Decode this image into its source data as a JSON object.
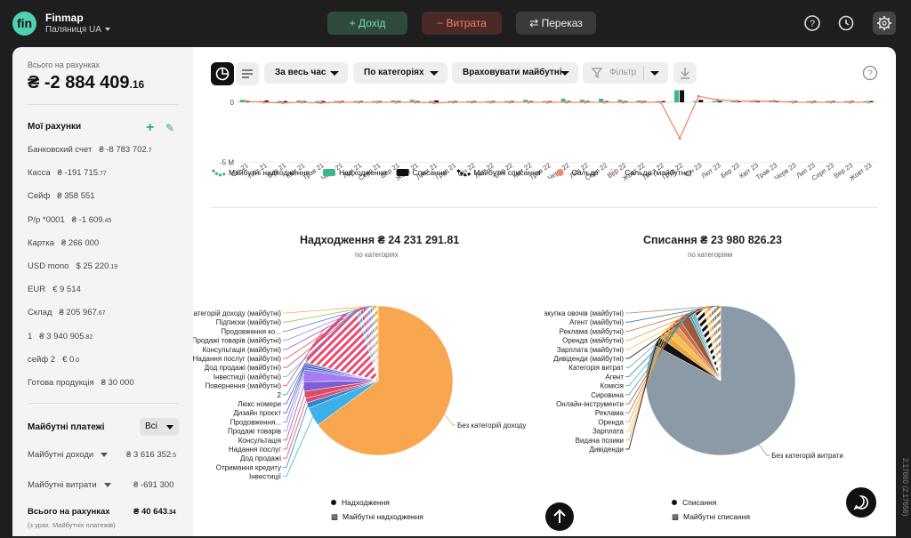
{
  "app": {
    "brand": "Finmap",
    "workspace": "Паляниця UA",
    "version": "2.17660 (2.17656)"
  },
  "topbar": {
    "income": "+ Дохід",
    "expense": "− Витрата",
    "transfer": "⇄ Переказ"
  },
  "sidebar": {
    "total_label": "Всього на рахунках",
    "total_main": "₴ -2 884 409",
    "total_cents": ".16",
    "accounts_title": "Мої рахунки",
    "accounts": [
      {
        "name": "Банковский счет",
        "value": "₴ -8 783 702",
        "cents": ".7"
      },
      {
        "name": "Касса",
        "value": "₴ -191 715",
        "cents": ".77"
      },
      {
        "name": "Сейф",
        "value": "₴ 358 551",
        "cents": ""
      },
      {
        "name": "Р/р *0001",
        "value": "₴ -1 609",
        "cents": ".45"
      },
      {
        "name": "Картка",
        "value": "₴ 266 000",
        "cents": ""
      },
      {
        "name": "USD mono",
        "value": "$ 25 220",
        "cents": ".19"
      },
      {
        "name": "EUR",
        "value": "€ 9 514",
        "cents": ""
      },
      {
        "name": "Склад",
        "value": "₴ 205 967",
        "cents": ".67"
      },
      {
        "name": "1",
        "value": "₴ 3 940 905",
        "cents": ".82"
      },
      {
        "name": "сейф 2",
        "value": "€ 0",
        "cents": ".0"
      },
      {
        "name": "Готова продукція",
        "value": "₴ 30 000",
        "cents": ""
      }
    ],
    "future_title": "Майбутні платежі",
    "future_filter": "Всі",
    "future_income_label": "Майбутні доходи",
    "future_income_value": "₴ 3 616 352",
    "future_income_cents": ".5",
    "future_expense_label": "Майбутні витрати",
    "future_expense_value": "₴ -691 300",
    "total_future_label": "Всього на рахунках",
    "total_future_value": "₴ 40 643",
    "total_future_cents": ".34",
    "total_future_note": "(з урах. Майбутніх платежів)"
  },
  "toolbar": {
    "period": "За весь час",
    "group": "По категоріях",
    "future": "Враховувати майбутні",
    "filter": "Фільтр"
  },
  "chart_data": [
    {
      "type": "bar",
      "ytick_labels": [
        "0",
        "-5 M"
      ],
      "categories": [
        "Січ 21",
        "Лют 21",
        "Бер 21",
        "Квіт 21",
        "Трав 21",
        "Черв 21",
        "Лип 21",
        "Серп 21",
        "Вер 21",
        "Жовт 21",
        "Лист 21",
        "Груд 21",
        "Січ 22",
        "Лют 22",
        "Бер 22",
        "Квіт 22",
        "Трав 22",
        "Черв 22",
        "Лип 22",
        "Серп 22",
        "Вер 22",
        "Жовт 22",
        "Лист 22",
        "Груд 22",
        "Січ 23",
        "Лют 23",
        "Бер 23",
        "Квіт 23",
        "Трав 23",
        "Черв 23",
        "Лип 23",
        "Серп 23",
        "Вер 23",
        "Жовт 23"
      ],
      "legend": [
        "Майбутні надходження",
        "Надходження",
        "Списання",
        "Майбутні списання",
        "Сальдо",
        "Сальдо (майбутнє)"
      ],
      "colors": {
        "future_income": "#3cb48c",
        "income": "#3cb48c",
        "expense": "#111111",
        "future_expense": "#111111",
        "balance": "#f08a6e",
        "balance_future": "#f08a6e"
      },
      "income": [
        0.2,
        0.1,
        0.1,
        0.15,
        0.1,
        0.1,
        0.1,
        0.1,
        0.15,
        0.2,
        0.1,
        0.1,
        0.1,
        0.1,
        0.1,
        0.2,
        0.1,
        0.3,
        0.2,
        0.3,
        0.2,
        0.15,
        0.1,
        1.0,
        0.1,
        0.1,
        0.1,
        0.1,
        0.1,
        0.1,
        0.1,
        0.1,
        0.1,
        0.1
      ],
      "expense": [
        0.1,
        0.15,
        0.1,
        0.1,
        0.1,
        0.1,
        0.1,
        0.1,
        0.1,
        0.1,
        0.15,
        0.1,
        0.1,
        0.1,
        0.1,
        0.1,
        0.1,
        0.1,
        0.1,
        0.1,
        0.1,
        0.1,
        0.1,
        1.0,
        0.2,
        0.1,
        0.1,
        0.1,
        0.1,
        0.1,
        0.1,
        0.1,
        0.1,
        0.1
      ],
      "balance": [
        0.1,
        0.0,
        -0.05,
        0.0,
        -0.05,
        0.0,
        0.0,
        0.0,
        0.0,
        0.0,
        -0.05,
        0.0,
        0.0,
        0.0,
        0.0,
        0.0,
        0.0,
        0.0,
        0.0,
        0.0,
        0.0,
        0.0,
        0.0,
        -3.0,
        0.5,
        0.2,
        0.1,
        0.1,
        0.1,
        0.0,
        0.0,
        0.0,
        0.0,
        0.0
      ]
    },
    {
      "type": "pie",
      "title": "Надходження ₴ 24 231 291.81",
      "subtitle": "по категоріях",
      "slices": [
        {
          "label": "Без категорій доходу",
          "value": 64,
          "color": "#f9a650"
        },
        {
          "label": "Інвестиції",
          "value": 4,
          "color": "#3cb0e8"
        },
        {
          "label": "Отримання кредиту",
          "value": 1.2,
          "color": "#2f86c8"
        },
        {
          "label": "Дод продажі",
          "value": 1,
          "color": "#e2477a"
        },
        {
          "label": "Надання послуг",
          "value": 1.5,
          "color": "#d94f62"
        },
        {
          "label": "Консультація",
          "value": 2,
          "color": "#7e5cd6"
        },
        {
          "label": "Продажі товарів",
          "value": 2.5,
          "color": "#a77cf0"
        },
        {
          "label": "Продовження...",
          "value": 0.5,
          "color": "#5b7ce0"
        },
        {
          "label": "Дизайн проєкт",
          "value": 0.5,
          "color": "#4a5ad0"
        },
        {
          "label": "Люкс номери",
          "value": 0.4,
          "color": "#7a4ab0"
        },
        {
          "label": "2",
          "value": 0.3,
          "color": "#3aa8a0"
        },
        {
          "label": "Повернення (майбутні)",
          "value": 16,
          "color": "#e94a6e",
          "future": true
        },
        {
          "label": "Інвестиції (майбутні)",
          "value": 0.8,
          "color": "#3cb0e8",
          "future": true
        },
        {
          "label": "Дод продажі (майбутні)",
          "value": 0.7,
          "color": "#e2477a",
          "future": true
        },
        {
          "label": "Надання послуг (майбутні)",
          "value": 0.5,
          "color": "#d94f62",
          "future": true
        },
        {
          "label": "Консультація (майбутні)",
          "value": 0.4,
          "color": "#7e5cd6",
          "future": true
        },
        {
          "label": "Продажі товарів (майбутні)",
          "value": 0.6,
          "color": "#a77cf0",
          "future": true
        },
        {
          "label": "Продовження ко...",
          "value": 0.4,
          "color": "#5b7ce0",
          "future": true
        },
        {
          "label": "Підписки (майбутні)",
          "value": 0.5,
          "color": "#8cc84b",
          "future": true
        },
        {
          "label": "Без категорій доходу (майбутні)",
          "value": 0.8,
          "color": "#f9a650",
          "future": true
        }
      ],
      "legend": [
        "Надходження",
        "Майбутні надходження"
      ]
    },
    {
      "type": "pie",
      "title": "Списання ₴ 23 980 826.23",
      "subtitle": "по категоріям",
      "slices": [
        {
          "label": "Без категорій витрати",
          "value": 82,
          "color": "#8a9aa6"
        },
        {
          "label": "Дивіденди",
          "value": 2,
          "color": "#111111"
        },
        {
          "label": "Видача позики",
          "value": 1.5,
          "color": "#f3a33a"
        },
        {
          "label": "Зарплата",
          "value": 1.5,
          "color": "#f6c04a"
        },
        {
          "label": "Оренда",
          "value": 1.5,
          "color": "#e89a58"
        },
        {
          "label": "Реклама",
          "value": 1.2,
          "color": "#c76a4a"
        },
        {
          "label": "Онлайн-інструменти",
          "value": 2.2,
          "color": "#9b5a3c"
        },
        {
          "label": "Сировина",
          "value": 0.5,
          "color": "#3a9fb0"
        },
        {
          "label": "Комісія",
          "value": 0.4,
          "color": "#4ab0d6"
        },
        {
          "label": "Агент",
          "value": 0.3,
          "color": "#2a7ea0"
        },
        {
          "label": "Категорія витрат",
          "value": 0.3,
          "color": "#7aa0b8"
        },
        {
          "label": "Дивіденди (майбутні)",
          "value": 2,
          "color": "#111111",
          "future": true
        },
        {
          "label": "Зарплата (майбутні)",
          "value": 0.8,
          "color": "#f6c04a",
          "future": true
        },
        {
          "label": "Оренда (майбутні)",
          "value": 0.7,
          "color": "#e89a58",
          "future": true
        },
        {
          "label": "Реклама (майбутні)",
          "value": 0.6,
          "color": "#c76a4a",
          "future": true
        },
        {
          "label": "Агент (майбутні)",
          "value": 0.5,
          "color": "#2a7ea0",
          "future": true
        },
        {
          "label": "Закупка овочів (майбутні)",
          "value": 1,
          "color": "#ad8a50",
          "future": true
        }
      ],
      "legend": [
        "Списання",
        "Майбутні списання"
      ]
    }
  ]
}
